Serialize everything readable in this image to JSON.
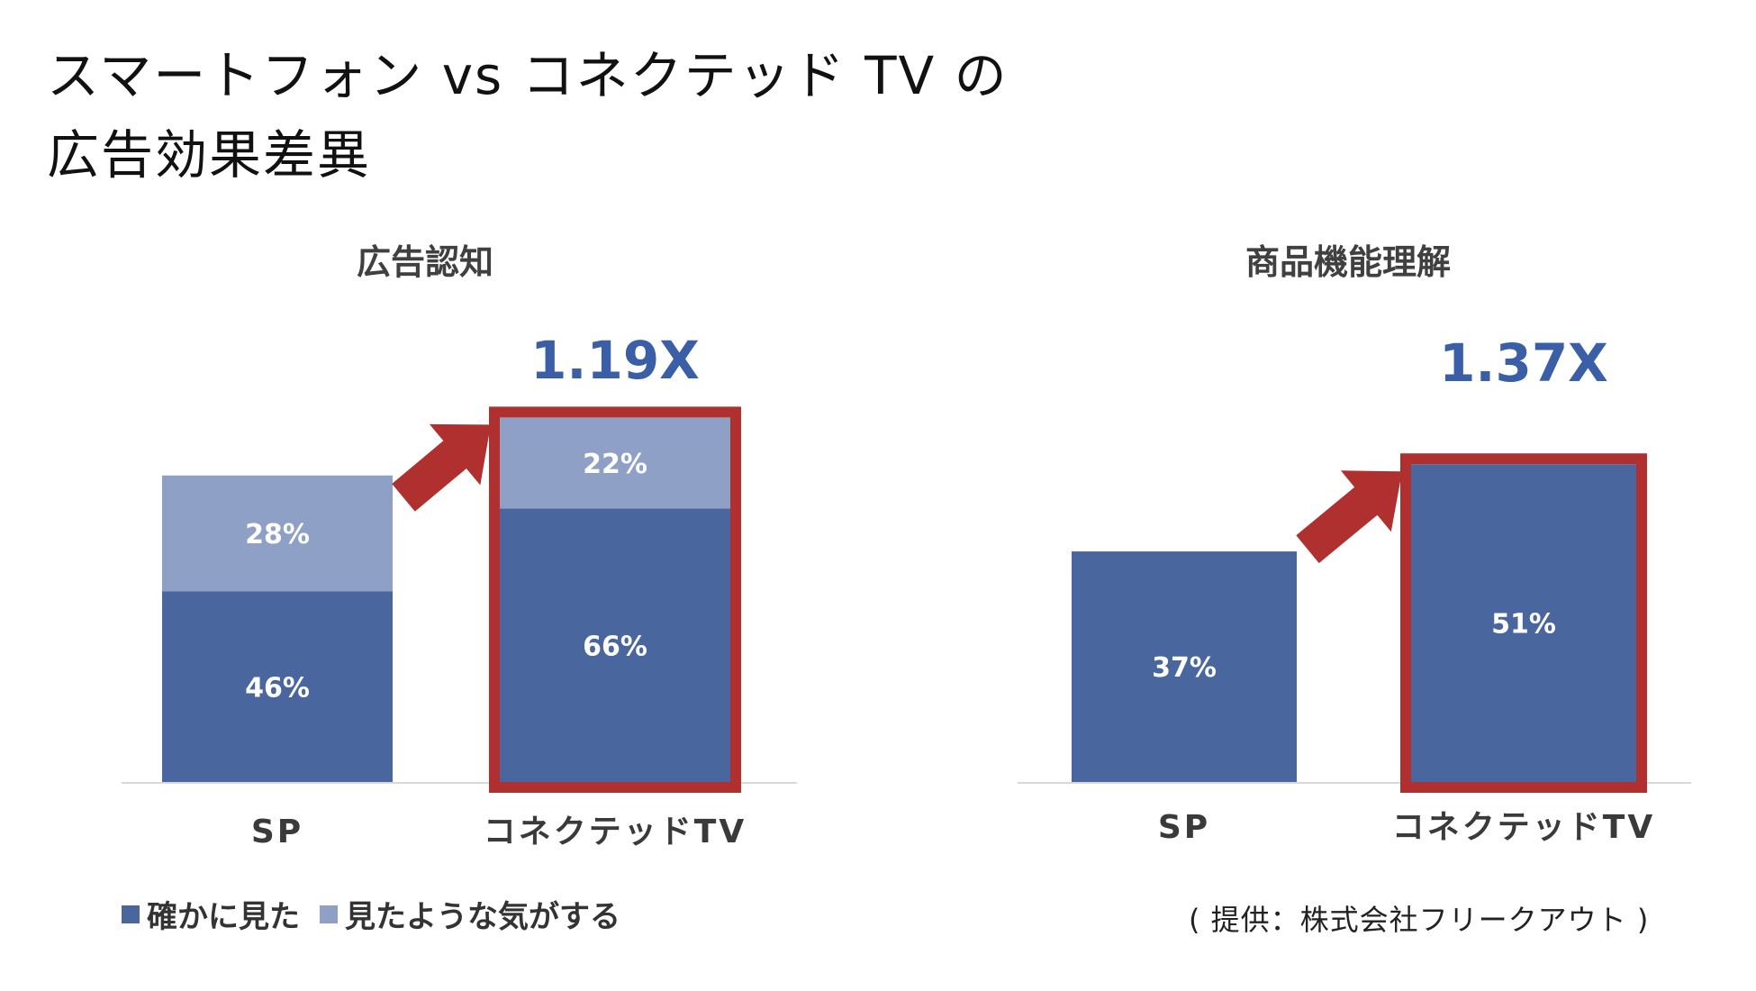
{
  "title": {
    "line1": "スマートフォン vs コネクテッド TV の",
    "line2": "広告効果差異"
  },
  "legend": {
    "items": [
      {
        "label": "確かに見た",
        "color": "#4a669e"
      },
      {
        "label": "見たような気がする",
        "color": "#8ea0c6"
      }
    ]
  },
  "source": "( 提供：株式会社フリークアウト )",
  "colors": {
    "dark_bar": "#4a669e",
    "light_bar": "#8ea0c6",
    "highlight_border": "#b0302f",
    "arrow": "#b0302f",
    "multiplier": "#3b5fa6",
    "axis": "#d9d9d9"
  },
  "chart_data": [
    {
      "type": "bar",
      "stacked": true,
      "title": "広告認知",
      "categories": [
        "SP",
        "コネクテッドTV"
      ],
      "series": [
        {
          "name": "確かに見た",
          "values": [
            46,
            66
          ],
          "labels": [
            "46%",
            "66%"
          ]
        },
        {
          "name": "見たような気がする",
          "values": [
            28,
            22
          ],
          "labels": [
            "28%",
            "22%"
          ]
        }
      ],
      "ylim": [
        0,
        92
      ],
      "highlight_category": "コネクテッドTV",
      "multiplier": "1.19X",
      "grid": false
    },
    {
      "type": "bar",
      "stacked": false,
      "title": "商品機能理解",
      "categories": [
        "SP",
        "コネクテッドTV"
      ],
      "series": [
        {
          "name": "",
          "values": [
            37,
            51
          ],
          "labels": [
            "37%",
            "51%"
          ]
        }
      ],
      "ylim": [
        0,
        60
      ],
      "highlight_category": "コネクテッドTV",
      "multiplier": "1.37X",
      "grid": false
    }
  ]
}
